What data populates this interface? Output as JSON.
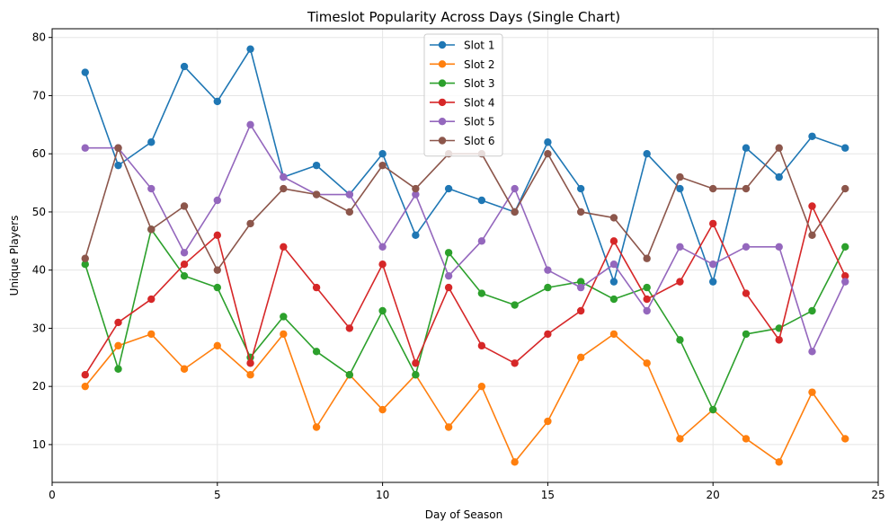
{
  "chart_data": {
    "type": "line",
    "title": "Timeslot Popularity Across Days (Single Chart)",
    "xlabel": "Day of Season",
    "ylabel": "Unique Players",
    "xlim": [
      0,
      25
    ],
    "ylim": [
      3.5,
      81.5
    ],
    "xticks": [
      0,
      5,
      10,
      15,
      20,
      25
    ],
    "yticks": [
      10,
      20,
      30,
      40,
      50,
      60,
      70,
      80
    ],
    "grid": true,
    "legend_position": "top-center",
    "x": [
      1,
      2,
      3,
      4,
      5,
      6,
      7,
      8,
      9,
      10,
      11,
      12,
      13,
      14,
      15,
      16,
      17,
      18,
      19,
      20,
      21,
      22,
      23,
      24
    ],
    "series": [
      {
        "name": "Slot 1",
        "color": "#1f77b4",
        "values": [
          74,
          58,
          62,
          75,
          69,
          78,
          56,
          58,
          53,
          60,
          46,
          54,
          52,
          50,
          62,
          54,
          38,
          60,
          54,
          38,
          61,
          56,
          63,
          61
        ]
      },
      {
        "name": "Slot 2",
        "color": "#ff7f0e",
        "values": [
          20,
          27,
          29,
          23,
          27,
          22,
          29,
          13,
          22,
          16,
          22,
          13,
          20,
          7,
          14,
          25,
          29,
          24,
          11,
          16,
          11,
          7,
          19,
          11
        ]
      },
      {
        "name": "Slot 3",
        "color": "#2ca02c",
        "values": [
          41,
          23,
          47,
          39,
          37,
          25,
          32,
          26,
          22,
          33,
          22,
          43,
          36,
          34,
          37,
          38,
          35,
          37,
          28,
          16,
          29,
          30,
          33,
          44
        ]
      },
      {
        "name": "Slot 4",
        "color": "#d62728",
        "values": [
          22,
          31,
          35,
          41,
          46,
          24,
          44,
          37,
          30,
          41,
          24,
          37,
          27,
          24,
          29,
          33,
          45,
          35,
          38,
          48,
          36,
          28,
          51,
          39
        ]
      },
      {
        "name": "Slot 5",
        "color": "#9467bd",
        "values": [
          61,
          61,
          54,
          43,
          52,
          65,
          56,
          53,
          53,
          44,
          53,
          39,
          45,
          54,
          40,
          37,
          41,
          33,
          44,
          41,
          44,
          44,
          26,
          38
        ]
      },
      {
        "name": "Slot 6",
        "color": "#8c564b",
        "values": [
          42,
          61,
          47,
          51,
          40,
          48,
          54,
          53,
          50,
          58,
          54,
          60,
          60,
          50,
          60,
          50,
          49,
          42,
          56,
          54,
          54,
          61,
          46,
          54
        ]
      }
    ]
  }
}
